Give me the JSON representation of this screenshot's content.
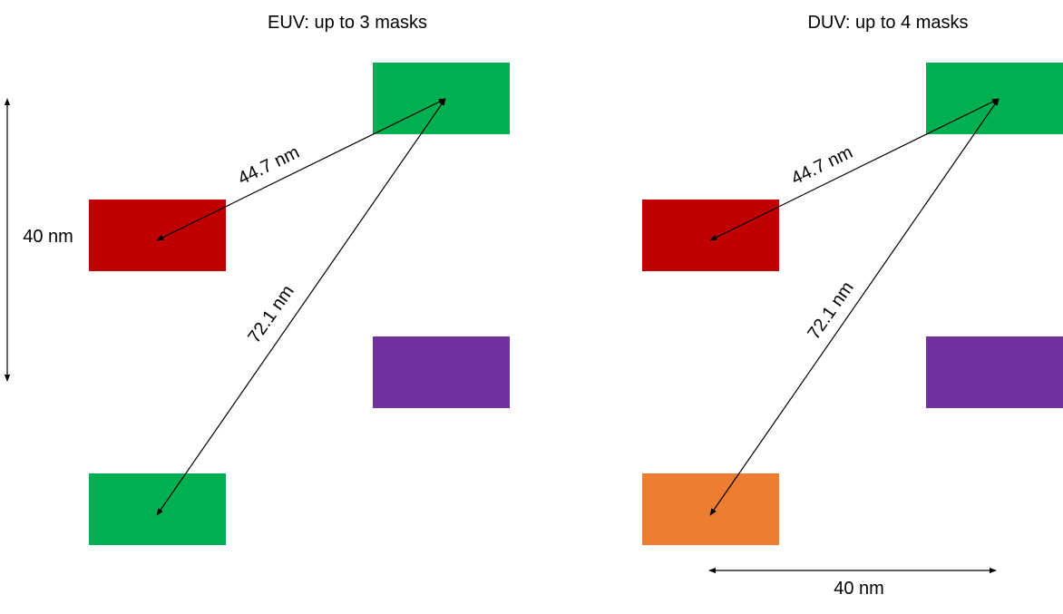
{
  "colors": {
    "green": "#00b050",
    "red": "#c00000",
    "purple": "#7030a0",
    "orange": "#ed7d31",
    "line": "#000000"
  },
  "panels": [
    {
      "id": "euv",
      "title": "EUV: up to 3 masks",
      "features": [
        {
          "name": "top-right-feature",
          "color": "green"
        },
        {
          "name": "left-upper-feature",
          "color": "red"
        },
        {
          "name": "right-lower-feature",
          "color": "purple"
        },
        {
          "name": "left-lower-feature",
          "color": "green"
        }
      ],
      "distances": {
        "diagonal_short": "44.7 nm",
        "diagonal_long": "72.1 nm"
      },
      "pitch_label": "40 nm"
    },
    {
      "id": "duv",
      "title": "DUV: up to 4 masks",
      "features": [
        {
          "name": "top-right-feature",
          "color": "green"
        },
        {
          "name": "left-upper-feature",
          "color": "red"
        },
        {
          "name": "right-lower-feature",
          "color": "purple"
        },
        {
          "name": "left-lower-feature",
          "color": "orange"
        }
      ],
      "distances": {
        "diagonal_short": "44.7 nm",
        "diagonal_long": "72.1 nm"
      },
      "pitch_label": "40 nm"
    }
  ]
}
